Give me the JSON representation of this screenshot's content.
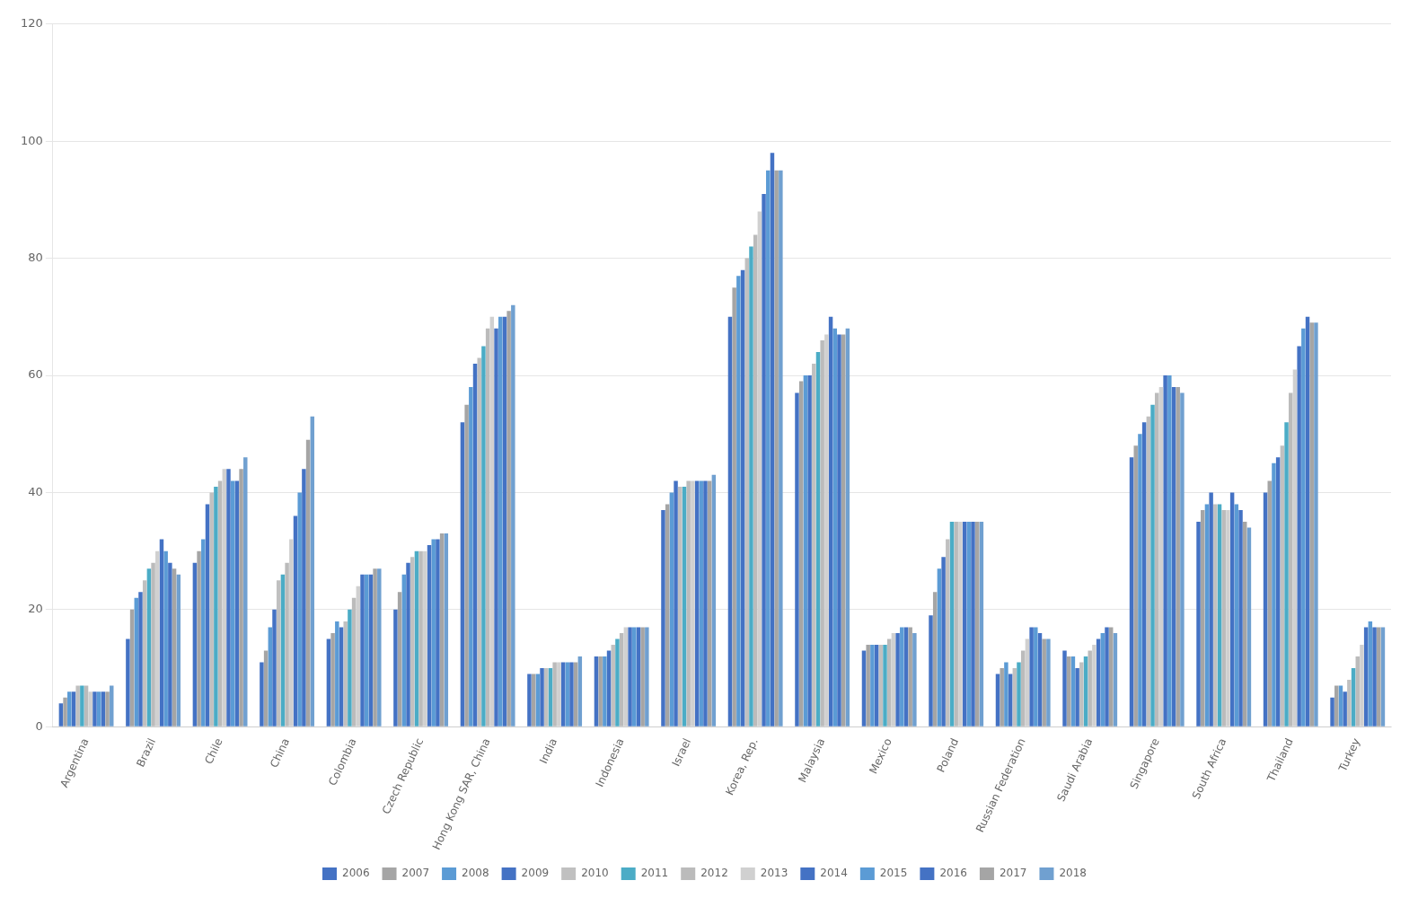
{
  "chart_data": {
    "type": "bar",
    "categories": [
      "Argentina",
      "Brazil",
      "Chile",
      "China",
      "Colombia",
      "Czech Republic",
      "Hong Kong SAR, China",
      "India",
      "Indonesia",
      "Israel",
      "Korea, Rep.",
      "Malaysia",
      "Mexico",
      "Poland",
      "Russian Federation",
      "Saudi Arabia",
      "Singapore",
      "South Africa",
      "Thailand",
      "Turkey"
    ],
    "series": [
      {
        "name": "2006",
        "color": "#4472C4",
        "values": [
          4,
          15,
          28,
          11,
          15,
          20,
          52,
          9,
          12,
          37,
          70,
          57,
          13,
          19,
          9,
          13,
          46,
          35,
          40,
          5
        ]
      },
      {
        "name": "2007",
        "color": "#A5A5A5",
        "values": [
          5,
          20,
          30,
          13,
          16,
          23,
          55,
          9,
          12,
          38,
          75,
          59,
          14,
          23,
          10,
          12,
          48,
          37,
          42,
          7
        ]
      },
      {
        "name": "2008",
        "color": "#5B9BD5",
        "values": [
          6,
          22,
          32,
          17,
          18,
          26,
          58,
          9,
          12,
          40,
          77,
          60,
          14,
          27,
          11,
          12,
          50,
          38,
          45,
          7
        ]
      },
      {
        "name": "2009",
        "color": "#4472C4",
        "values": [
          6,
          23,
          38,
          20,
          17,
          28,
          62,
          10,
          13,
          42,
          78,
          60,
          14,
          29,
          9,
          10,
          52,
          40,
          46,
          6
        ]
      },
      {
        "name": "2010",
        "color": "#C0C0C0",
        "values": [
          7,
          25,
          40,
          25,
          18,
          29,
          63,
          10,
          14,
          41,
          80,
          62,
          14,
          32,
          10,
          11,
          53,
          38,
          48,
          8
        ]
      },
      {
        "name": "2011",
        "color": "#4BACC6",
        "values": [
          7,
          27,
          41,
          26,
          20,
          30,
          65,
          10,
          15,
          41,
          82,
          64,
          14,
          35,
          11,
          12,
          55,
          38,
          52,
          10
        ]
      },
      {
        "name": "2012",
        "color": "#BBBBBB",
        "values": [
          7,
          28,
          42,
          28,
          22,
          30,
          68,
          11,
          16,
          42,
          84,
          66,
          15,
          35,
          13,
          13,
          57,
          37,
          57,
          12
        ]
      },
      {
        "name": "2013",
        "color": "#D0D0D0",
        "values": [
          6,
          30,
          44,
          32,
          24,
          30,
          70,
          11,
          17,
          42,
          88,
          67,
          16,
          35,
          15,
          14,
          58,
          37,
          61,
          14
        ]
      },
      {
        "name": "2014",
        "color": "#4472C4",
        "values": [
          6,
          32,
          44,
          36,
          26,
          31,
          68,
          11,
          17,
          42,
          91,
          70,
          16,
          35,
          17,
          15,
          60,
          40,
          65,
          17
        ]
      },
      {
        "name": "2015",
        "color": "#5B9BD5",
        "values": [
          6,
          30,
          42,
          40,
          26,
          32,
          70,
          11,
          17,
          42,
          95,
          68,
          17,
          35,
          17,
          16,
          60,
          38,
          68,
          18
        ]
      },
      {
        "name": "2016",
        "color": "#4472C4",
        "values": [
          6,
          28,
          42,
          44,
          26,
          32,
          70,
          11,
          17,
          42,
          98,
          67,
          17,
          35,
          16,
          17,
          58,
          37,
          70,
          17
        ]
      },
      {
        "name": "2017",
        "color": "#A5A5A5",
        "values": [
          6,
          27,
          44,
          49,
          27,
          33,
          71,
          11,
          17,
          42,
          95,
          67,
          17,
          35,
          15,
          17,
          58,
          35,
          69,
          17
        ]
      },
      {
        "name": "2018",
        "color": "#70A0D0",
        "values": [
          7,
          26,
          46,
          53,
          27,
          33,
          72,
          12,
          17,
          43,
          95,
          68,
          16,
          35,
          15,
          16,
          57,
          34,
          69,
          17
        ]
      }
    ],
    "ylim": [
      0,
      120
    ],
    "yticks": [
      0,
      20,
      40,
      60,
      80,
      100,
      120
    ],
    "grid": true,
    "legend": "bottom"
  }
}
